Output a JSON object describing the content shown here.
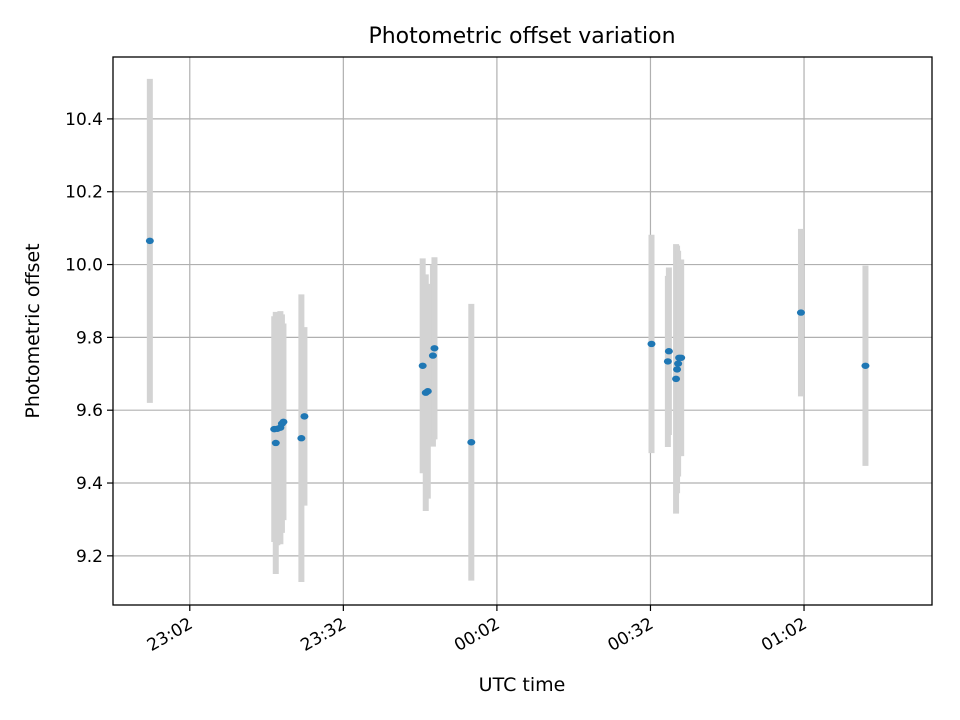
{
  "chart_data": {
    "type": "scatter",
    "title": "Photometric offset variation",
    "xlabel": "UTC time",
    "ylabel": "Photometric offset",
    "x_axis": "time",
    "xlim": [
      "22:47",
      "01:27"
    ],
    "ylim": [
      9.065,
      10.57
    ],
    "xticks": [
      "23:02",
      "23:32",
      "00:02",
      "00:32",
      "01:02"
    ],
    "yticks": [
      9.2,
      9.4,
      9.6,
      9.8,
      10.0,
      10.2,
      10.4
    ],
    "grid": true,
    "legend": "none",
    "colors": {
      "points": "#1f77b4",
      "errorbars": "#d3d3d3"
    },
    "points": [
      {
        "x": "22:54:12",
        "y": 10.065,
        "yerr": 0.445
      },
      {
        "x": "23:18:30",
        "y": 9.548,
        "yerr": 0.31
      },
      {
        "x": "23:18:48",
        "y": 9.51,
        "yerr": 0.36
      },
      {
        "x": "23:19:06",
        "y": 9.549,
        "yerr": 0.32
      },
      {
        "x": "23:19:42",
        "y": 9.552,
        "yerr": 0.32
      },
      {
        "x": "23:20:00",
        "y": 9.563,
        "yerr": 0.3
      },
      {
        "x": "23:20:18",
        "y": 9.568,
        "yerr": 0.27
      },
      {
        "x": "23:23:48",
        "y": 9.523,
        "yerr": 0.395
      },
      {
        "x": "23:24:24",
        "y": 9.583,
        "yerr": 0.245
      },
      {
        "x": "23:47:30",
        "y": 9.722,
        "yerr": 0.295
      },
      {
        "x": "23:48:06",
        "y": 9.648,
        "yerr": 0.325
      },
      {
        "x": "23:48:30",
        "y": 9.652,
        "yerr": 0.295
      },
      {
        "x": "23:49:30",
        "y": 9.75,
        "yerr": 0.25
      },
      {
        "x": "23:49:48",
        "y": 9.77,
        "yerr": 0.25
      },
      {
        "x": "23:57:00",
        "y": 9.512,
        "yerr": 0.38
      },
      {
        "x": "00:32:12",
        "y": 9.782,
        "yerr": 0.3
      },
      {
        "x": "00:35:24",
        "y": 9.734,
        "yerr": 0.235
      },
      {
        "x": "00:35:36",
        "y": 9.762,
        "yerr": 0.23
      },
      {
        "x": "00:37:00",
        "y": 9.686,
        "yerr": 0.37
      },
      {
        "x": "00:37:12",
        "y": 9.712,
        "yerr": 0.34
      },
      {
        "x": "00:37:24",
        "y": 9.728,
        "yerr": 0.31
      },
      {
        "x": "00:37:36",
        "y": 9.744,
        "yerr": 0.27
      },
      {
        "x": "00:38:00",
        "y": 9.744,
        "yerr": 0.27
      },
      {
        "x": "01:01:24",
        "y": 9.868,
        "yerr": 0.23
      },
      {
        "x": "01:14:00",
        "y": 9.722,
        "yerr": 0.275
      }
    ]
  }
}
